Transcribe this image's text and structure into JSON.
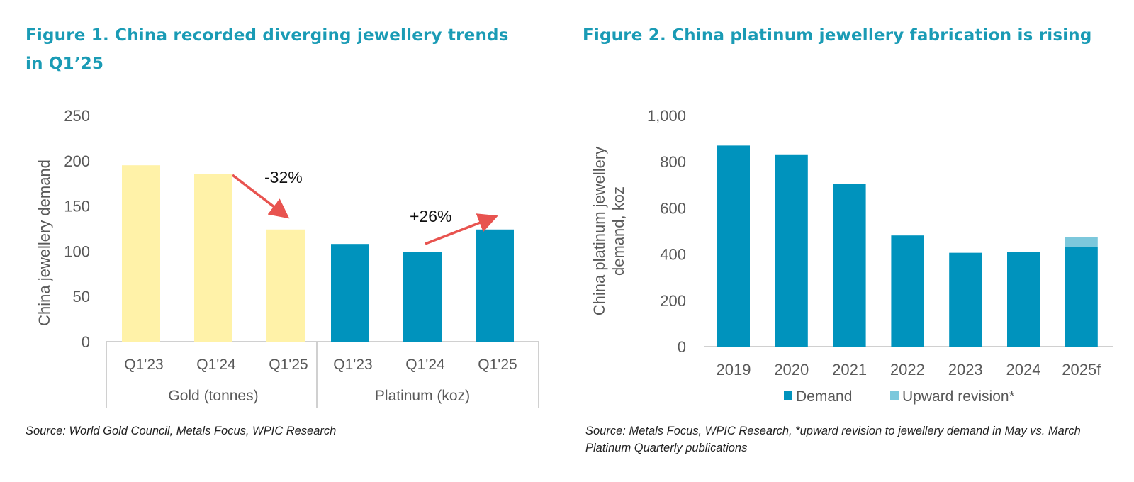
{
  "figure1": {
    "title": "Figure 1. China recorded diverging jewellery trends in Q1’25",
    "source": "Source: World Gold Council, Metals Focus, WPIC Research"
  },
  "figure2": {
    "title": "Figure 2. China platinum jewellery fabrication is rising",
    "source": "Source: Metals Focus, WPIC Research, *upward revision to jewellery demand in May vs. March Platinum Quarterly publications"
  },
  "chart_data": [
    {
      "type": "bar",
      "title": "China recorded diverging jewellery trends in Q1’25",
      "ylabel": "China jewellery demand",
      "ylim": [
        0,
        250
      ],
      "yticks": [
        "0",
        "50",
        "100",
        "150",
        "200",
        "250"
      ],
      "groups": [
        {
          "name": "Gold (tonnes)",
          "color": "#FFF2A8",
          "categories": [
            "Q1'23",
            "Q1'24",
            "Q1'25"
          ],
          "values": [
            195,
            185,
            124
          ]
        },
        {
          "name": "Platinum (koz)",
          "color": "#0093BD",
          "categories": [
            "Q1'23",
            "Q1'24",
            "Q1'25"
          ],
          "values": [
            108,
            99,
            124
          ]
        }
      ],
      "annotations": [
        {
          "text": "-32%",
          "from": "Gold Q1'24",
          "to": "Gold Q1'25",
          "color": "#E8534F"
        },
        {
          "text": "+26%",
          "from": "Platinum Q1'24",
          "to": "Platinum Q1'25",
          "color": "#E8534F"
        }
      ]
    },
    {
      "type": "bar",
      "stacked": true,
      "title": "China platinum jewellery fabrication is rising",
      "ylabel": "China platinum jewellery demand, koz",
      "ylim": [
        0,
        1000
      ],
      "yticks": [
        "0",
        "200",
        "400",
        "600",
        "800",
        "1,000"
      ],
      "categories": [
        "2019",
        "2020",
        "2021",
        "2022",
        "2023",
        "2024",
        "2025f"
      ],
      "series": [
        {
          "name": "Demand",
          "color": "#0093BD",
          "values": [
            870,
            832,
            705,
            481,
            406,
            410,
            431
          ]
        },
        {
          "name": "Upward revision*",
          "color": "#7CC8DC",
          "values": [
            0,
            0,
            0,
            0,
            0,
            0,
            42
          ]
        }
      ],
      "legend": "bottom"
    }
  ]
}
